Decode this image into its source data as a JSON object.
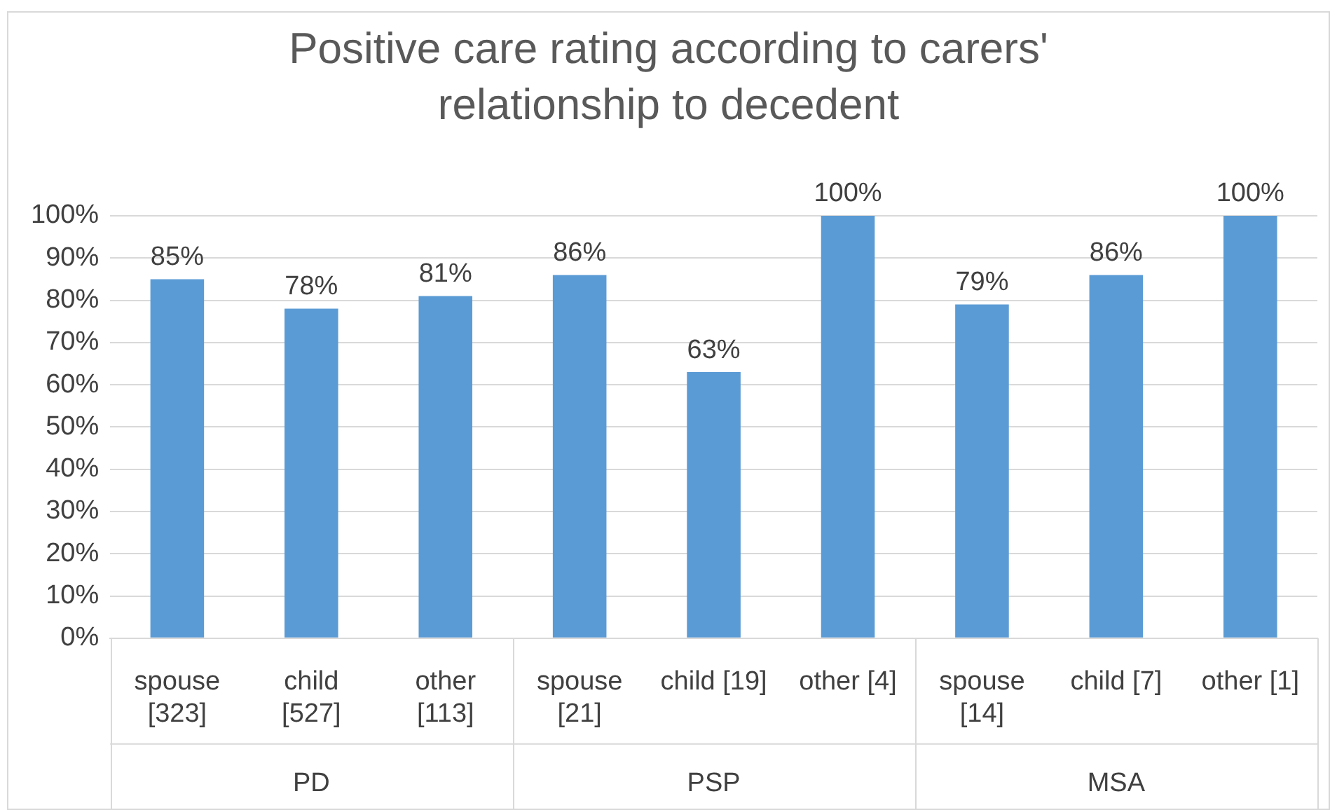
{
  "chart_data": {
    "type": "bar",
    "title": "Positive care rating according to carers' relationship to decedent",
    "categories": [
      "spouse [323]",
      "child [527]",
      "other [113]",
      "spouse [21]",
      "child [19]",
      "other [4]",
      "spouse [14]",
      "child [7]",
      "other [1]"
    ],
    "values": [
      85,
      78,
      81,
      86,
      63,
      100,
      79,
      86,
      100
    ],
    "value_labels": [
      "85%",
      "78%",
      "81%",
      "86%",
      "63%",
      "100%",
      "79%",
      "86%",
      "100%"
    ],
    "color": "#5b9bd5",
    "ylim": [
      0,
      100
    ],
    "yticks": [
      {
        "value": 0,
        "label": "0%"
      },
      {
        "value": 10,
        "label": "10%"
      },
      {
        "value": 20,
        "label": "20%"
      },
      {
        "value": 30,
        "label": "30%"
      },
      {
        "value": 40,
        "label": "40%"
      },
      {
        "value": 50,
        "label": "50%"
      },
      {
        "value": 60,
        "label": "60%"
      },
      {
        "value": 70,
        "label": "70%"
      },
      {
        "value": 80,
        "label": "80%"
      },
      {
        "value": 90,
        "label": "90%"
      },
      {
        "value": 100,
        "label": "100%"
      }
    ],
    "grid": "y",
    "annotations": [
      "PD",
      "PSP",
      "MSA"
    ]
  }
}
